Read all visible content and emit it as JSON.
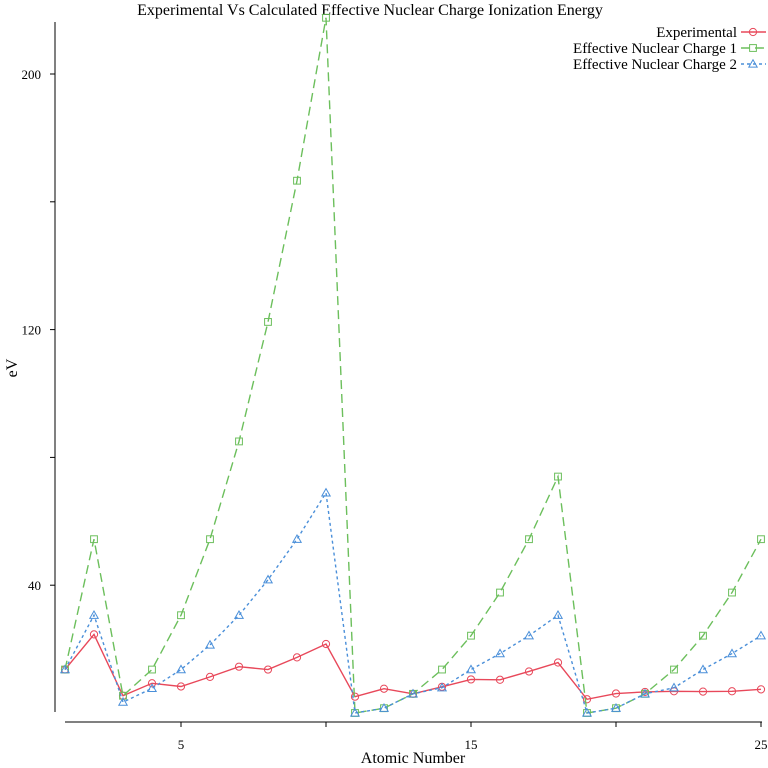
{
  "chart_data": {
    "type": "line",
    "title": "Experimental Vs Calculated Effective Nuclear Charge Ionization Energy",
    "xlabel": "Atomic Number",
    "ylabel": "eV",
    "xlim": [
      1,
      25
    ],
    "ylim": [
      -2,
      216
    ],
    "x_ticks": [
      5,
      15,
      25
    ],
    "x_minor_ticks": [
      10,
      20
    ],
    "y_ticks": [
      40,
      120,
      200
    ],
    "y_minor_ticks": [
      80,
      160
    ],
    "grid": false,
    "legend_position": "top-right",
    "x": [
      1,
      2,
      3,
      4,
      5,
      6,
      7,
      8,
      9,
      10,
      11,
      12,
      13,
      14,
      15,
      16,
      17,
      18,
      19,
      20,
      21,
      22,
      23,
      24,
      25
    ],
    "series": [
      {
        "name": "Experimental",
        "color": "#e8485a",
        "dash": "solid",
        "marker": "circle",
        "values": [
          13.6,
          24.6,
          5.4,
          9.3,
          8.3,
          11.3,
          14.5,
          13.6,
          17.4,
          21.6,
          5.1,
          7.6,
          6.0,
          8.2,
          10.5,
          10.4,
          13.0,
          15.8,
          4.3,
          6.1,
          6.6,
          6.8,
          6.7,
          6.8,
          7.4
        ]
      },
      {
        "name": "Effective Nuclear Charge 1",
        "color": "#6cbf5c",
        "dash": "long-dash",
        "marker": "square",
        "values": [
          13.6,
          54.4,
          5.4,
          13.6,
          30.6,
          54.4,
          85.0,
          122.4,
          166.6,
          217.6,
          0.0,
          1.5,
          6.0,
          13.6,
          24.2,
          37.7,
          54.4,
          74.0,
          0.0,
          1.5,
          6.0,
          13.6,
          24.2,
          37.7,
          54.4
        ]
      },
      {
        "name": "Effective Nuclear Charge 2",
        "color": "#4a8fd9",
        "dash": "dotted",
        "marker": "triangle",
        "values": [
          13.6,
          30.6,
          3.4,
          7.7,
          13.6,
          21.3,
          30.6,
          41.7,
          54.4,
          68.9,
          0.0,
          1.5,
          6.0,
          7.9,
          13.6,
          18.6,
          24.2,
          30.6,
          0.0,
          1.5,
          6.0,
          7.9,
          13.6,
          18.6,
          24.2
        ]
      }
    ]
  }
}
